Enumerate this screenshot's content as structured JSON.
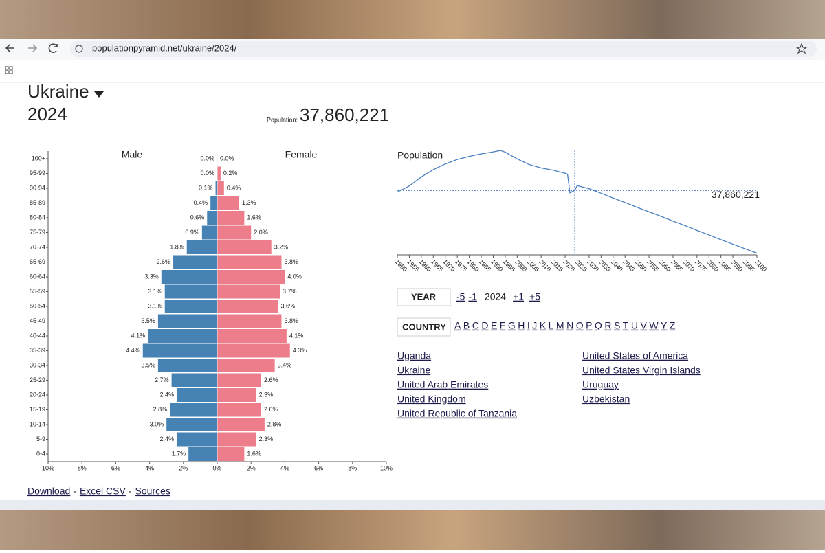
{
  "browser": {
    "url": "populationpyramid.net/ukraine/2024/"
  },
  "header": {
    "country": "Ukraine",
    "year": "2024",
    "population_label": "Population:",
    "population": "37,860,221"
  },
  "chart_data": [
    {
      "type": "pyramid",
      "categories": [
        "100+",
        "95-99",
        "90-94",
        "85-89",
        "80-84",
        "75-79",
        "70-74",
        "65-69",
        "60-64",
        "55-59",
        "50-54",
        "45-49",
        "40-44",
        "35-39",
        "30-34",
        "25-29",
        "20-24",
        "15-19",
        "10-14",
        "5-9",
        "0-4"
      ],
      "series": [
        {
          "name": "Male",
          "color": "#4682b4",
          "values": [
            0.0,
            0.0,
            0.1,
            0.4,
            0.6,
            0.9,
            1.8,
            2.6,
            3.3,
            3.1,
            3.1,
            3.5,
            4.1,
            4.4,
            3.5,
            2.7,
            2.4,
            2.8,
            3.0,
            2.4,
            1.7
          ],
          "value_labels": [
            "0.0%",
            "0.0%",
            "0.1%",
            "0.4%",
            "0.6%",
            "0.9%",
            "1.8%",
            "2.6%",
            "3.3%",
            "3.1%",
            "3.1%",
            "3.5%",
            "4.1%",
            "4.4%",
            "3.5%",
            "2.7%",
            "2.4%",
            "2.8%",
            "3.0%",
            "2.4%",
            "1.7%"
          ]
        },
        {
          "name": "Female",
          "color": "#ee7d8b",
          "values": [
            0.0,
            0.2,
            0.4,
            1.3,
            1.6,
            2.0,
            3.2,
            3.8,
            4.0,
            3.7,
            3.6,
            3.8,
            4.1,
            4.3,
            3.4,
            2.6,
            2.3,
            2.6,
            2.8,
            2.3,
            1.6
          ],
          "value_labels": [
            "0.0%",
            "0.2%",
            "0.4%",
            "1.3%",
            "1.6%",
            "2.0%",
            "3.2%",
            "3.8%",
            "4.0%",
            "3.7%",
            "3.6%",
            "3.8%",
            "4.1%",
            "4.3%",
            "3.4%",
            "2.6%",
            "2.3%",
            "2.6%",
            "2.8%",
            "2.3%",
            "1.6%"
          ]
        }
      ],
      "xlim": [
        -10,
        10
      ],
      "xticks": [
        {
          "value": -10,
          "label": "10%"
        },
        {
          "value": -8,
          "label": "8%"
        },
        {
          "value": -6,
          "label": "6%"
        },
        {
          "value": -4,
          "label": "4%"
        },
        {
          "value": -2,
          "label": "2%"
        },
        {
          "value": 0,
          "label": "0%"
        },
        {
          "value": 2,
          "label": "2%"
        },
        {
          "value": 4,
          "label": "4%"
        },
        {
          "value": 6,
          "label": "6%"
        },
        {
          "value": 8,
          "label": "8%"
        },
        {
          "value": 10,
          "label": "10%"
        }
      ]
    },
    {
      "type": "line",
      "title": "Population",
      "color": "#4a7fc0",
      "x": [
        1950,
        1955,
        1960,
        1965,
        1970,
        1975,
        1980,
        1985,
        1990,
        1993,
        1995,
        2000,
        2005,
        2010,
        2015,
        2020,
        2021,
        2022,
        2023,
        2024,
        2025,
        2026,
        2030,
        2035,
        2040,
        2045,
        2050,
        2055,
        2060,
        2065,
        2070,
        2075,
        2080,
        2085,
        2090,
        2095,
        2100
      ],
      "values": [
        37300000,
        39500000,
        42700000,
        45300000,
        47300000,
        48900000,
        50000000,
        50900000,
        51600000,
        52100000,
        51500000,
        49100000,
        47100000,
        45900000,
        45100000,
        44000000,
        43700000,
        37000000,
        37500000,
        37860221,
        39600000,
        39400000,
        38500000,
        36900000,
        35200000,
        33600000,
        31900000,
        30300000,
        28700000,
        27000000,
        25400000,
        23700000,
        22100000,
        20400000,
        18800000,
        17200000,
        15600000
      ],
      "xlim": [
        1950,
        2100
      ],
      "xticks": [
        1950,
        1955,
        1960,
        1965,
        1970,
        1975,
        1980,
        1985,
        1990,
        1995,
        2000,
        2005,
        2010,
        2015,
        2020,
        2025,
        2030,
        2035,
        2040,
        2045,
        2050,
        2055,
        2060,
        2065,
        2070,
        2075,
        2080,
        2085,
        2090,
        2095,
        2100
      ],
      "ylim": [
        15000000,
        57000000
      ],
      "annotations": [
        {
          "text": "37,860,221",
          "x": 2024,
          "y": 37860221
        }
      ]
    }
  ],
  "year_nav": {
    "label": "YEAR",
    "links": [
      "-5",
      "-1"
    ],
    "current": "2024",
    "links_after": [
      "+1",
      "+5"
    ]
  },
  "country_nav": {
    "label": "COUNTRY",
    "letters": [
      "A",
      "B",
      "C",
      "D",
      "E",
      "F",
      "G",
      "H",
      "I",
      "J",
      "K",
      "L",
      "M",
      "N",
      "O",
      "P",
      "Q",
      "R",
      "S",
      "T",
      "U",
      "V",
      "W",
      "Y",
      "Z"
    ],
    "countries": [
      "Uganda",
      "Ukraine",
      "United Arab Emirates",
      "United Kingdom",
      "United Republic of Tanzania",
      "United States of America",
      "United States Virgin Islands",
      "Uruguay",
      "Uzbekistan"
    ]
  },
  "footer": {
    "links": [
      "Download",
      "Excel CSV",
      "Sources"
    ],
    "separator": "-"
  }
}
